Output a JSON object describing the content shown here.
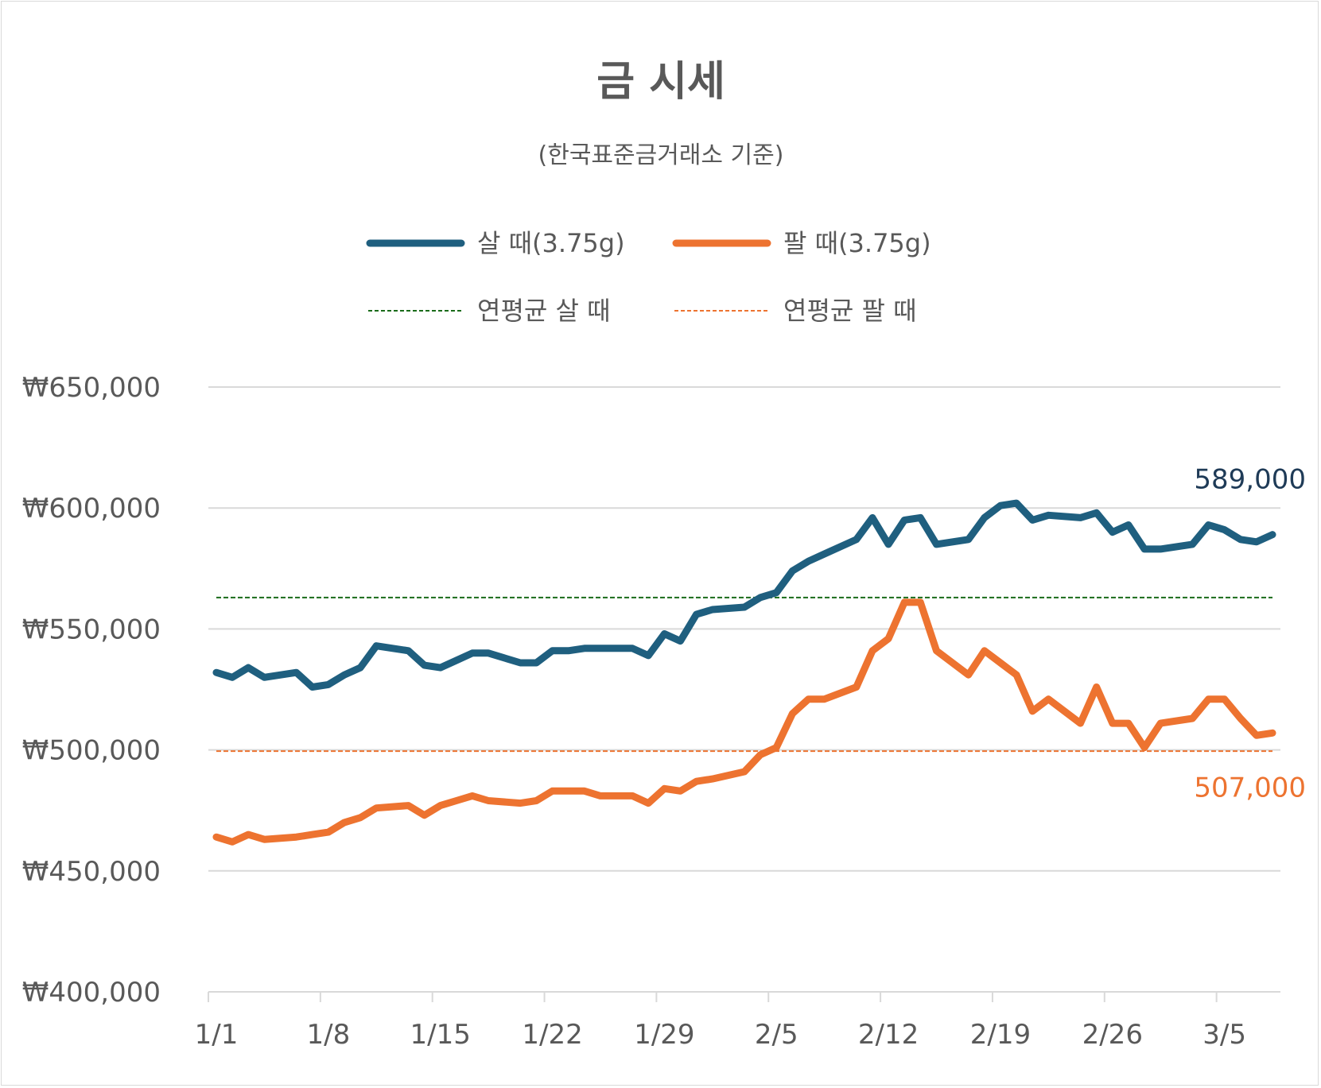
{
  "chart_data": {
    "type": "line",
    "title": "금 시세",
    "subtitle": "(한국표준금거래소 기준)",
    "legend_position": "top",
    "grid": true,
    "ylim": [
      400000,
      650000
    ],
    "y_ticks": [
      "₩400,000",
      "₩450,000",
      "₩500,000",
      "₩550,000",
      "₩600,000",
      "₩650,000"
    ],
    "x_ticks": [
      "1/1",
      "1/8",
      "1/15",
      "1/22",
      "1/29",
      "2/5",
      "2/12",
      "2/19",
      "2/26",
      "3/5"
    ],
    "series": [
      {
        "name": "살 때(3.75g)",
        "color": "#1f5f7f",
        "style": "solid",
        "end_label": "589,000",
        "end_label_color": "#1f3b57",
        "points": [
          [
            "1/1",
            532000
          ],
          [
            "1/2",
            530000
          ],
          [
            "1/3",
            534000
          ],
          [
            "1/4",
            530000
          ],
          [
            "1/6",
            532000
          ],
          [
            "1/7",
            526000
          ],
          [
            "1/8",
            527000
          ],
          [
            "1/9",
            531000
          ],
          [
            "1/10",
            534000
          ],
          [
            "1/11",
            543000
          ],
          [
            "1/13",
            541000
          ],
          [
            "1/14",
            535000
          ],
          [
            "1/15",
            534000
          ],
          [
            "1/16",
            537000
          ],
          [
            "1/17",
            540000
          ],
          [
            "1/18",
            540000
          ],
          [
            "1/20",
            536000
          ],
          [
            "1/21",
            536000
          ],
          [
            "1/22",
            541000
          ],
          [
            "1/23",
            541000
          ],
          [
            "1/24",
            542000
          ],
          [
            "1/25",
            542000
          ],
          [
            "1/27",
            542000
          ],
          [
            "1/28",
            539000
          ],
          [
            "1/29",
            548000
          ],
          [
            "1/30",
            545000
          ],
          [
            "1/31",
            556000
          ],
          [
            "2/1",
            558000
          ],
          [
            "2/3",
            559000
          ],
          [
            "2/4",
            563000
          ],
          [
            "2/5",
            565000
          ],
          [
            "2/6",
            574000
          ],
          [
            "2/7",
            578000
          ],
          [
            "2/8",
            581000
          ],
          [
            "2/10",
            587000
          ],
          [
            "2/11",
            596000
          ],
          [
            "2/12",
            585000
          ],
          [
            "2/13",
            595000
          ],
          [
            "2/14",
            596000
          ],
          [
            "2/15",
            585000
          ],
          [
            "2/17",
            587000
          ],
          [
            "2/18",
            596000
          ],
          [
            "2/19",
            601000
          ],
          [
            "2/20",
            602000
          ],
          [
            "2/21",
            595000
          ],
          [
            "2/22",
            597000
          ],
          [
            "2/24",
            596000
          ],
          [
            "2/25",
            598000
          ],
          [
            "2/26",
            590000
          ],
          [
            "2/27",
            593000
          ],
          [
            "2/28",
            583000
          ],
          [
            "3/1",
            583000
          ],
          [
            "3/3",
            585000
          ],
          [
            "3/4",
            593000
          ],
          [
            "3/5",
            591000
          ],
          [
            "3/6",
            587000
          ],
          [
            "3/7",
            586000
          ],
          [
            "3/8",
            589000
          ]
        ]
      },
      {
        "name": "팔 때(3.75g)",
        "color": "#ed7330",
        "style": "solid",
        "end_label": "507,000",
        "end_label_color": "#ed7330",
        "points": [
          [
            "1/1",
            464000
          ],
          [
            "1/2",
            462000
          ],
          [
            "1/3",
            465000
          ],
          [
            "1/4",
            463000
          ],
          [
            "1/6",
            464000
          ],
          [
            "1/7",
            465000
          ],
          [
            "1/8",
            466000
          ],
          [
            "1/9",
            470000
          ],
          [
            "1/10",
            472000
          ],
          [
            "1/11",
            476000
          ],
          [
            "1/13",
            477000
          ],
          [
            "1/14",
            473000
          ],
          [
            "1/15",
            477000
          ],
          [
            "1/16",
            479000
          ],
          [
            "1/17",
            481000
          ],
          [
            "1/18",
            479000
          ],
          [
            "1/20",
            478000
          ],
          [
            "1/21",
            479000
          ],
          [
            "1/22",
            483000
          ],
          [
            "1/23",
            483000
          ],
          [
            "1/24",
            483000
          ],
          [
            "1/25",
            481000
          ],
          [
            "1/27",
            481000
          ],
          [
            "1/28",
            478000
          ],
          [
            "1/29",
            484000
          ],
          [
            "1/30",
            483000
          ],
          [
            "1/31",
            487000
          ],
          [
            "2/1",
            488000
          ],
          [
            "2/3",
            491000
          ],
          [
            "2/4",
            498000
          ],
          [
            "2/5",
            501000
          ],
          [
            "2/6",
            515000
          ],
          [
            "2/7",
            521000
          ],
          [
            "2/8",
            521000
          ],
          [
            "2/10",
            526000
          ],
          [
            "2/11",
            541000
          ],
          [
            "2/12",
            546000
          ],
          [
            "2/13",
            561000
          ],
          [
            "2/14",
            561000
          ],
          [
            "2/15",
            541000
          ],
          [
            "2/17",
            531000
          ],
          [
            "2/18",
            541000
          ],
          [
            "2/19",
            536000
          ],
          [
            "2/20",
            531000
          ],
          [
            "2/21",
            516000
          ],
          [
            "2/22",
            521000
          ],
          [
            "2/24",
            511000
          ],
          [
            "2/25",
            526000
          ],
          [
            "2/26",
            511000
          ],
          [
            "2/27",
            511000
          ],
          [
            "2/28",
            501000
          ],
          [
            "3/1",
            511000
          ],
          [
            "3/3",
            513000
          ],
          [
            "3/4",
            521000
          ],
          [
            "3/5",
            521000
          ],
          [
            "3/6",
            513000
          ],
          [
            "3/7",
            506000
          ],
          [
            "3/8",
            507000
          ]
        ]
      },
      {
        "name": "연평균 살 때",
        "color": "#1a6b1a",
        "style": "dashed",
        "value": 563000
      },
      {
        "name": "연평균 팔 때",
        "color": "#ed7330",
        "style": "dashed",
        "value": 499500
      }
    ]
  }
}
